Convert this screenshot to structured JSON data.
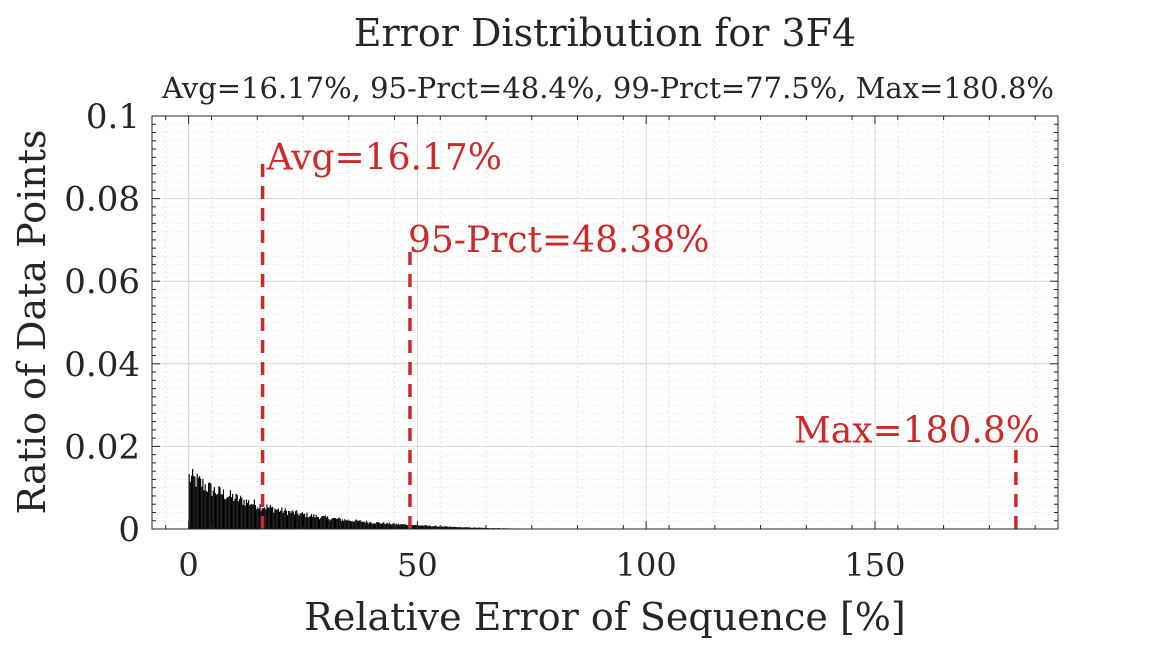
{
  "chart_data": {
    "type": "bar",
    "title": "Error Distribution for 3F4",
    "subtitle": "Avg=16.17%, 95-Prct=48.4%, 99-Prct=77.5%, Max=180.8%",
    "xlabel": "Relative Error of Sequence [%]",
    "ylabel": "Ratio of Data Points",
    "xlim": [
      -8,
      190
    ],
    "ylim": [
      0,
      0.1
    ],
    "xticks": [
      0,
      50,
      100,
      150
    ],
    "yticks": [
      0,
      0.02,
      0.04,
      0.06,
      0.08,
      0.1
    ],
    "ytick_labels": [
      "0",
      "0.02",
      "0.04",
      "0.06",
      "0.08",
      "0.1"
    ],
    "grid": true,
    "bar_color": "#000000",
    "histogram_profile": {
      "x": [
        0,
        2,
        5,
        10,
        15,
        20,
        25,
        30,
        35,
        40,
        45,
        50,
        55,
        60,
        65,
        70,
        75,
        80
      ],
      "y": [
        0.0125,
        0.0115,
        0.0095,
        0.0075,
        0.0058,
        0.0045,
        0.0035,
        0.0027,
        0.0021,
        0.0016,
        0.0012,
        0.0009,
        0.0006,
        0.0004,
        0.00025,
        0.00015,
        8e-05,
        0.0
      ]
    },
    "markers": [
      {
        "label": "Avg=16.17%",
        "x": 16.17,
        "y_top": 0.089,
        "color": "#cc2a2a"
      },
      {
        "label": "95-Prct=48.38%",
        "x": 48.38,
        "y_top": 0.069,
        "color": "#cc2a2a"
      },
      {
        "label": "Max=180.8%",
        "x": 180.8,
        "y_top": 0.02,
        "color": "#cc2a2a"
      }
    ]
  }
}
